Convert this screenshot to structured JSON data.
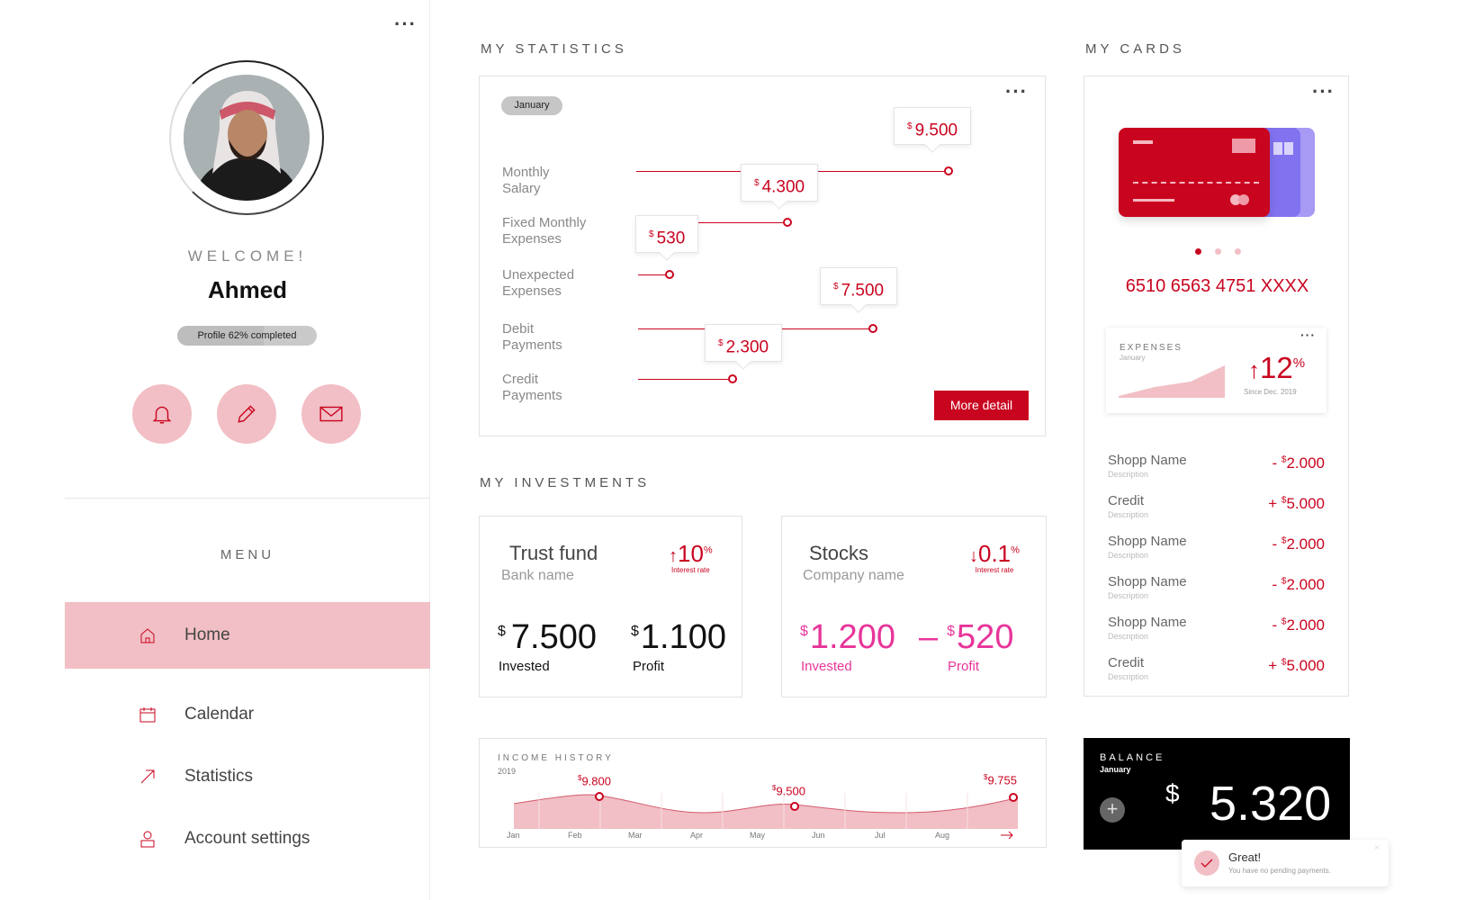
{
  "profile": {
    "welcome": "WELCOME!",
    "name": "Ahmed",
    "progress_label": "Profile 62% completed",
    "progress_pct": 62
  },
  "actions": [
    {
      "icon": "bell-icon"
    },
    {
      "icon": "pencil-icon"
    },
    {
      "icon": "mail-icon"
    }
  ],
  "menu": {
    "title": "MENU",
    "items": [
      {
        "label": "Home",
        "icon": "home-icon",
        "active": true
      },
      {
        "label": "Calendar",
        "icon": "calendar-icon",
        "active": false
      },
      {
        "label": "Statistics",
        "icon": "arrow-up-right-icon",
        "active": false
      },
      {
        "label": "Account settings",
        "icon": "user-icon",
        "active": false
      }
    ]
  },
  "statistics": {
    "title": "MY STATISTICS",
    "month": "January",
    "rows": [
      {
        "label1": "Monthly",
        "label2": "Salary",
        "currency": "$",
        "value": "9.500"
      },
      {
        "label1": "Fixed Monthly",
        "label2": "Expenses",
        "currency": "$",
        "value": "4.300"
      },
      {
        "label1": "Unexpected",
        "label2": "Expenses",
        "currency": "$",
        "value": "530"
      },
      {
        "label1": "Debit",
        "label2": "Payments",
        "currency": "$",
        "value": "7.500"
      },
      {
        "label1": "Credit",
        "label2": "Payments",
        "currency": "$",
        "value": "2.300"
      }
    ],
    "more_button": "More detail"
  },
  "investments": {
    "title": "MY INVESTMENTS",
    "trust": {
      "title": "Trust fund",
      "sub": "Bank name",
      "rate_arrow": "↑",
      "rate": "10",
      "rate_unit": "%",
      "rate_label": "Interest rate",
      "currency": "$",
      "invested": "7.500",
      "invested_label": "Invested",
      "profit": "1.100",
      "profit_label": "Profit"
    },
    "stocks": {
      "title": "Stocks",
      "sub": "Company name",
      "rate_arrow": "↓",
      "rate": "0.1",
      "rate_unit": "%",
      "rate_label": "Interest rate",
      "currency": "$",
      "invested": "1.200",
      "invested_label": "Invested",
      "profit_sign": "–",
      "profit": "520",
      "profit_label": "Profit"
    }
  },
  "income": {
    "title": "INCOME HISTORY",
    "year": "2019",
    "months": [
      "Jan",
      "Feb",
      "Mar",
      "Apr",
      "May",
      "Jun",
      "Jul",
      "Aug"
    ],
    "markers": [
      {
        "currency": "$",
        "value": "9.800"
      },
      {
        "currency": "$",
        "value": "9.500"
      },
      {
        "currency": "$",
        "value": "9.755"
      }
    ]
  },
  "cards": {
    "title": "MY CARDS",
    "number": "6510 6563 4751 XXXX",
    "colors": {
      "front": "#c9041f",
      "back1": "#8172f0",
      "back2": "#a79af5"
    },
    "expenses": {
      "title": "EXPENSES",
      "month": "January",
      "arrow": "↑",
      "value": "12",
      "unit": "%",
      "since": "Since Dec. 2019"
    },
    "transactions": [
      {
        "name": "Shopp Name",
        "desc": "Description",
        "sign": "-",
        "currency": "$",
        "amount": "2.000"
      },
      {
        "name": "Credit",
        "desc": "Description",
        "sign": "+",
        "currency": "$",
        "amount": "5.000"
      },
      {
        "name": "Shopp Name",
        "desc": "Description",
        "sign": "-",
        "currency": "$",
        "amount": "2.000"
      },
      {
        "name": "Shopp Name",
        "desc": "Description",
        "sign": "-",
        "currency": "$",
        "amount": "2.000"
      },
      {
        "name": "Shopp Name",
        "desc": "Description",
        "sign": "-",
        "currency": "$",
        "amount": "2.000"
      },
      {
        "name": "Credit",
        "desc": "Description",
        "sign": "+",
        "currency": "$",
        "amount": "5.000"
      }
    ]
  },
  "balance": {
    "title": "BALANCE",
    "month": "January",
    "currency": "$",
    "amount": "5.320"
  },
  "toast": {
    "title": "Great!",
    "message": "You have no pending payments."
  }
}
